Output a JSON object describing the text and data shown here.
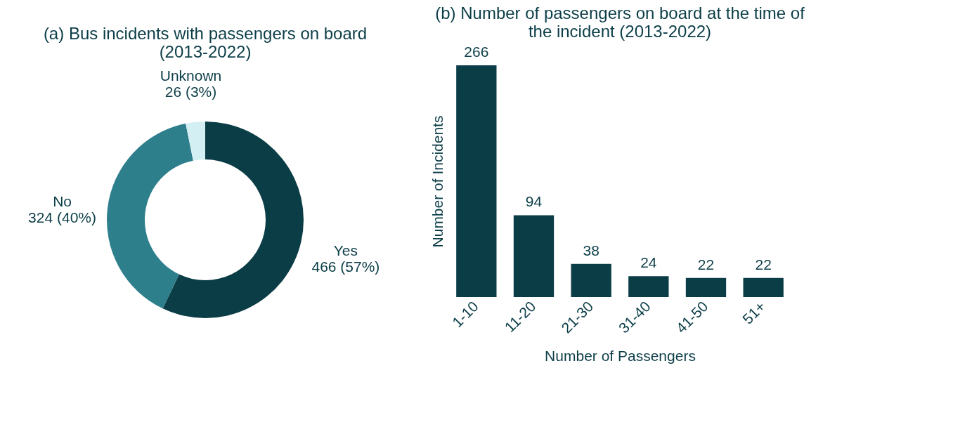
{
  "chart_data": [
    {
      "type": "donut",
      "title": "(a) Bus incidents with passengers on board (2013-2022)",
      "categories": [
        "Yes",
        "No",
        "Unknown"
      ],
      "values": [
        466,
        324,
        26
      ],
      "colors": [
        "#0b3d47",
        "#2e7f8c",
        "#d4eff3"
      ],
      "value_labels": [
        "466 (57%)",
        "324 (40%)",
        "26 (3%)"
      ],
      "legend": false
    },
    {
      "type": "bar",
      "title": "(b) Number of passengers on board at the time of the incident (2013-2022)",
      "xlabel": "Number of Passengers",
      "ylabel": "Number of Incidents",
      "categories": [
        "1-10",
        "11-20",
        "21-30",
        "31-40",
        "41-50",
        "51+"
      ],
      "values": [
        266,
        94,
        38,
        24,
        22,
        22
      ],
      "color": "#0b3d47",
      "data_labels": true,
      "tick_labels": "x",
      "grid": false
    }
  ]
}
